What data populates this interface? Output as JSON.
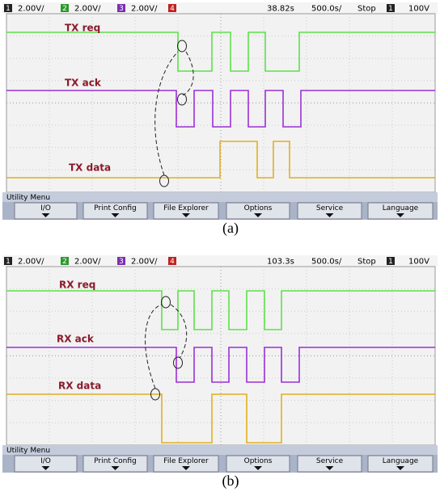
{
  "panels": [
    {
      "status": {
        "channels": [
          {
            "number": "1",
            "scale": "2.00V/"
          },
          {
            "number": "2",
            "scale": "2.00V/"
          },
          {
            "number": "3",
            "scale": "2.00V/"
          },
          {
            "number": "4"
          }
        ],
        "delay": "38.82s",
        "timebase": "500.0s/",
        "mode": "Stop",
        "trigger_source": "1",
        "trigger_level": "100V"
      },
      "signals": [
        "TX req",
        "TX ack",
        "TX data"
      ],
      "menu": {
        "title": "Utility Menu",
        "buttons": [
          "I/O",
          "Print Config",
          "File Explorer",
          "Options",
          "Service",
          "Language"
        ]
      },
      "caption": "(a)"
    },
    {
      "status": {
        "channels": [
          {
            "number": "1",
            "scale": "2.00V/"
          },
          {
            "number": "2",
            "scale": "2.00V/"
          },
          {
            "number": "3",
            "scale": "2.00V/"
          },
          {
            "number": "4"
          }
        ],
        "delay": "103.3s",
        "timebase": "500.0s/",
        "mode": "Stop",
        "trigger_source": "1",
        "trigger_level": "100V"
      },
      "signals": [
        "RX req",
        "RX ack",
        "RX data"
      ],
      "menu": {
        "title": "Utility Menu",
        "buttons": [
          "I/O",
          "Print Config",
          "File Explorer",
          "Options",
          "Service",
          "Language"
        ]
      },
      "caption": "(b)"
    }
  ]
}
